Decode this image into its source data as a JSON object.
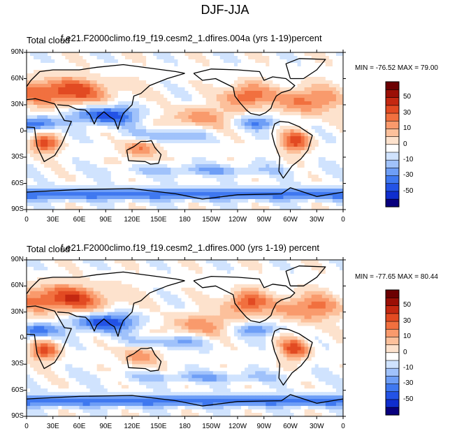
{
  "title": "DJF-JJA",
  "colorbar_colors": [
    "#08007e",
    "#0f2ecf",
    "#2353e6",
    "#3f78f0",
    "#6e9ef6",
    "#a0c2fb",
    "#d0e3fe",
    "#ffffff",
    "#fde2cd",
    "#fcc09b",
    "#f99a6c",
    "#f1703f",
    "#e24a22",
    "#c42811",
    "#9b0f06",
    "#6c0002"
  ],
  "colorbar_labels": [
    "50",
    "30",
    "10",
    "0",
    "-10",
    "-30",
    "-50"
  ],
  "x_ticks": [
    "0",
    "30E",
    "60E",
    "90E",
    "120E",
    "150E",
    "180",
    "150W",
    "120W",
    "90W",
    "60W",
    "30W",
    "0"
  ],
  "y_ticks": [
    "90N",
    "60N",
    "30N",
    "0",
    "30S",
    "60S",
    "90S"
  ],
  "panels": [
    {
      "left_label": "Total cloud",
      "right_label": "f.e21.F2000climo.f19_f19.cesm2_1.dfires.004a (yrs 1-19)percent",
      "minmax": "MIN = -76.52 MAX =  79.00"
    },
    {
      "left_label": "Total cloud",
      "right_label": "f.e21.F2000climo.f19_f19.cesm2_1.dfires.000 (yrs 1-19) percent",
      "minmax": "MIN = -77.65 MAX =  80.44"
    }
  ]
}
